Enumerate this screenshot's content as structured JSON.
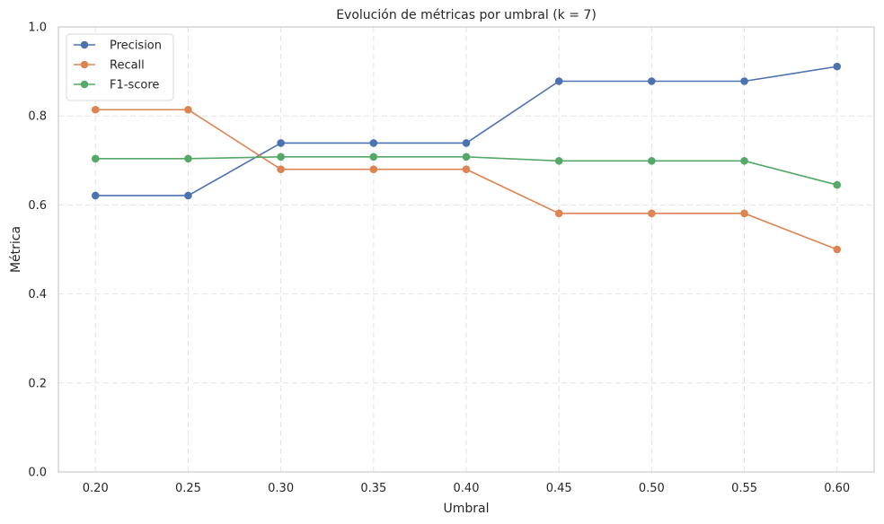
{
  "chart_data": {
    "type": "line",
    "title": "Evolución de métricas por umbral (k = 7)",
    "xlabel": "Umbral",
    "ylabel": "Métrica",
    "x": [
      0.2,
      0.25,
      0.3,
      0.35,
      0.4,
      0.45,
      0.5,
      0.55,
      0.6
    ],
    "x_tick_labels": [
      "0.20",
      "0.25",
      "0.30",
      "0.35",
      "0.40",
      "0.45",
      "0.50",
      "0.55",
      "0.60"
    ],
    "y_tick_values": [
      0.0,
      0.2,
      0.4,
      0.6,
      0.8,
      1.0
    ],
    "y_tick_labels": [
      "0.0",
      "0.2",
      "0.4",
      "0.6",
      "0.8",
      "1.0"
    ],
    "ylim": [
      0,
      1
    ],
    "xlim": [
      0.18,
      0.62
    ],
    "grid": true,
    "legend_position": "top-left",
    "series": [
      {
        "name": "Precision",
        "color": "#4c72b0",
        "values": [
          0.621,
          0.621,
          0.739,
          0.739,
          0.739,
          0.878,
          0.878,
          0.878,
          0.911
        ]
      },
      {
        "name": "Recall",
        "color": "#dd8452",
        "values": [
          0.814,
          0.814,
          0.68,
          0.68,
          0.68,
          0.581,
          0.581,
          0.581,
          0.5
        ]
      },
      {
        "name": "F1-score",
        "color": "#55a868",
        "values": [
          0.704,
          0.704,
          0.708,
          0.708,
          0.708,
          0.699,
          0.699,
          0.699,
          0.645
        ]
      }
    ]
  }
}
